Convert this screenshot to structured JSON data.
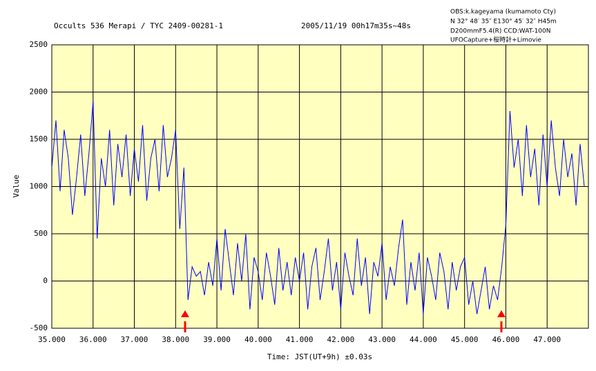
{
  "chart_data": {
    "type": "line",
    "title": "Occults 536 Merapi / TYC 2409-00281-1",
    "subtitle": "2005/11/19 00h17m35s~48s",
    "annotations": [
      "OBS:k.kageyama (kumamoto Cty)",
      "N 32° 48′ 35″ E130° 45′ 32″ H45m",
      "D200mmF5.4(R)   CCD:WAT-100N",
      "UFOCapture+桜時計+Limovie"
    ],
    "x_label": "Time:  JST(UT+9h)  ±0.03s",
    "y_label": "Value",
    "xlim": [
      35,
      48
    ],
    "ylim": [
      -500,
      2500
    ],
    "xticks": [
      {
        "value": 35,
        "label": "35.000"
      },
      {
        "value": 36,
        "label": "36.000"
      },
      {
        "value": 37,
        "label": "37.000"
      },
      {
        "value": 38,
        "label": "38.000"
      },
      {
        "value": 39,
        "label": "39.000"
      },
      {
        "value": 40,
        "label": "40.000"
      },
      {
        "value": 41,
        "label": "41.000"
      },
      {
        "value": 42,
        "label": "42.000"
      },
      {
        "value": 43,
        "label": "43.000"
      },
      {
        "value": 44,
        "label": "44.000"
      },
      {
        "value": 45,
        "label": "45.000"
      },
      {
        "value": 46,
        "label": "46.000"
      },
      {
        "value": 47,
        "label": "47.000"
      }
    ],
    "yticks": [
      -500,
      0,
      500,
      1000,
      1500,
      2000,
      2500
    ],
    "grid": true,
    "background": "#ffffc0",
    "x": [
      35.0,
      35.1,
      35.2,
      35.3,
      35.4,
      35.5,
      35.6,
      35.7,
      35.8,
      35.9,
      36.0,
      36.1,
      36.2,
      36.3,
      36.4,
      36.5,
      36.6,
      36.7,
      36.8,
      36.9,
      37.0,
      37.1,
      37.2,
      37.3,
      37.4,
      37.5,
      37.6,
      37.7,
      37.8,
      37.9,
      38.0,
      38.1,
      38.2,
      38.3,
      38.4,
      38.5,
      38.6,
      38.7,
      38.8,
      38.9,
      39.0,
      39.1,
      39.2,
      39.3,
      39.4,
      39.5,
      39.6,
      39.7,
      39.8,
      39.9,
      40.0,
      40.1,
      40.2,
      40.3,
      40.4,
      40.5,
      40.6,
      40.7,
      40.8,
      40.9,
      41.0,
      41.1,
      41.2,
      41.3,
      41.4,
      41.5,
      41.6,
      41.7,
      41.8,
      41.9,
      42.0,
      42.1,
      42.2,
      42.3,
      42.4,
      42.5,
      42.6,
      42.7,
      42.8,
      42.9,
      43.0,
      43.1,
      43.2,
      43.3,
      43.4,
      43.5,
      43.6,
      43.7,
      43.8,
      43.9,
      44.0,
      44.1,
      44.2,
      44.3,
      44.4,
      44.5,
      44.6,
      44.7,
      44.8,
      44.9,
      45.0,
      45.1,
      45.2,
      45.3,
      45.4,
      45.5,
      45.6,
      45.7,
      45.8,
      45.9,
      46.0,
      46.1,
      46.2,
      46.3,
      46.4,
      46.5,
      46.6,
      46.7,
      46.8,
      46.9,
      47.0,
      47.1,
      47.2,
      47.3,
      47.4,
      47.5,
      47.6,
      47.7,
      47.8,
      47.9
    ],
    "series": [
      {
        "color": "#0000ff",
        "values": [
          1200,
          1700,
          950,
          1600,
          1300,
          700,
          1100,
          1550,
          900,
          1350,
          1900,
          450,
          1300,
          1000,
          1600,
          800,
          1450,
          1100,
          1550,
          900,
          1400,
          1050,
          1650,
          850,
          1300,
          1500,
          950,
          1650,
          1100,
          1300,
          1600,
          550,
          1200,
          -200,
          150,
          50,
          100,
          -150,
          200,
          -50,
          450,
          -100,
          550,
          200,
          -150,
          400,
          0,
          500,
          -300,
          250,
          100,
          -200,
          300,
          50,
          -250,
          350,
          -100,
          200,
          -150,
          250,
          0,
          300,
          -300,
          150,
          350,
          -200,
          100,
          450,
          -100,
          200,
          -300,
          300,
          50,
          -150,
          450,
          -50,
          250,
          -350,
          200,
          50,
          400,
          -200,
          150,
          -50,
          350,
          650,
          -250,
          200,
          -100,
          300,
          -350,
          250,
          50,
          -200,
          300,
          100,
          -300,
          200,
          -100,
          150,
          250,
          -250,
          0,
          -350,
          -100,
          150,
          -300,
          -50,
          -200,
          150,
          600,
          1800,
          1200,
          1500,
          900,
          1650,
          1100,
          1400,
          800,
          1550,
          1000,
          1700,
          1200,
          900,
          1500,
          1100,
          1350,
          800,
          1450,
          1000
        ]
      }
    ]
  }
}
